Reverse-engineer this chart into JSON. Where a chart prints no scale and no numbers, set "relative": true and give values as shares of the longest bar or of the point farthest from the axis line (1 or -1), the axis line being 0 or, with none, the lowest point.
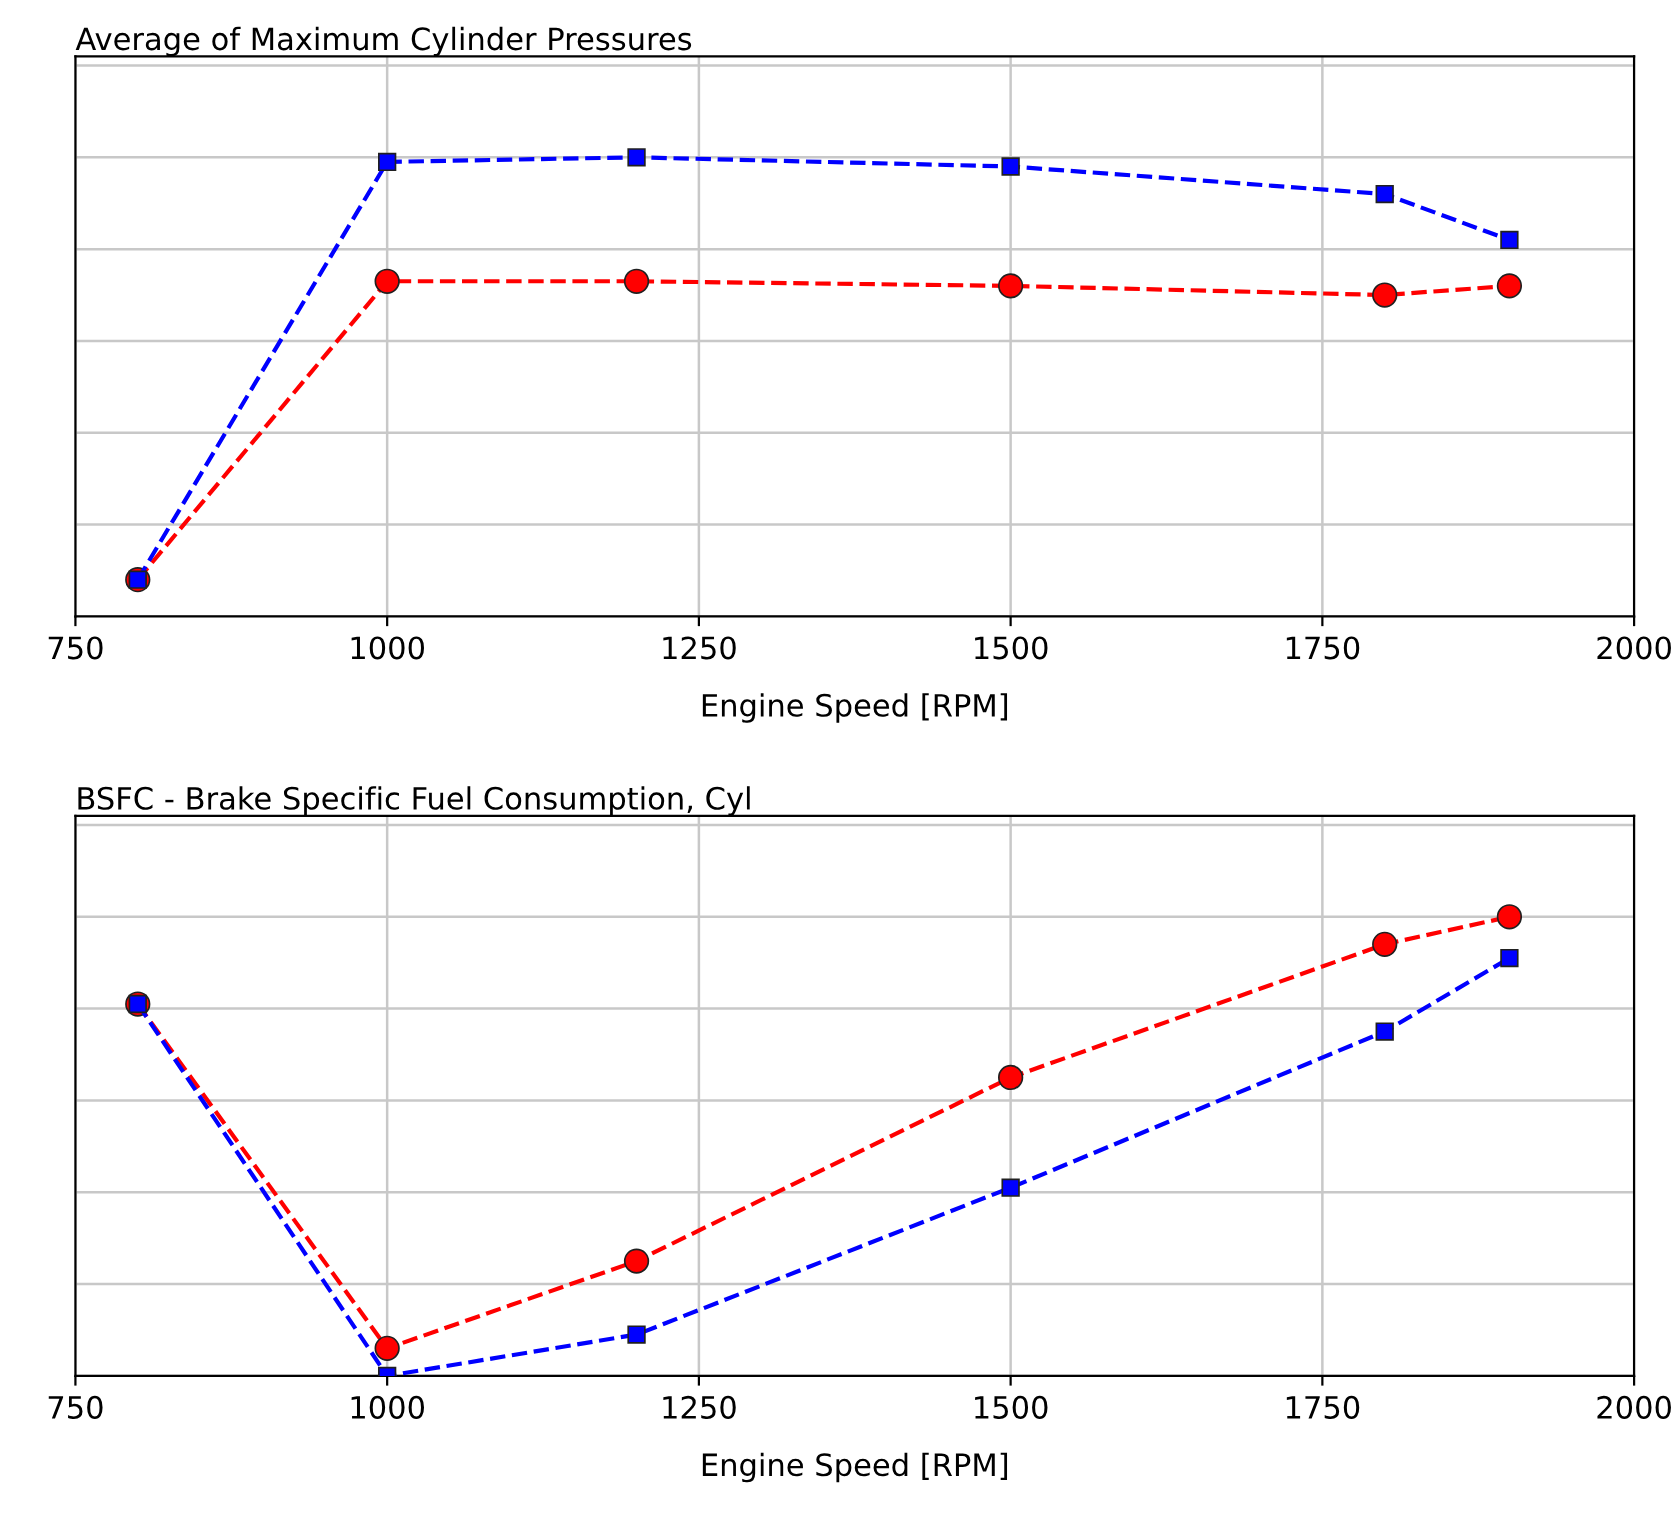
{
  "chart_data": [
    {
      "type": "line",
      "title": "Average of Maximum Cylinder Pressures",
      "xlabel": "Engine Speed [RPM]",
      "relative": true,
      "x": [
        800,
        1000,
        1200,
        1500,
        1800,
        1900
      ],
      "xlim": [
        750,
        2000
      ],
      "xticks": [
        750,
        1000,
        1250,
        1500,
        1750,
        2000
      ],
      "grid": true,
      "line_style": "dashed",
      "tick_labels": "x",
      "series": [
        {
          "color": "#0000ff",
          "marker": "square",
          "values": [
            0.08,
            0.99,
            1,
            0.98,
            0.92,
            0.82
          ]
        },
        {
          "color": "#ff0000",
          "marker": "circle",
          "values": [
            0.08,
            0.73,
            0.73,
            0.72,
            0.7,
            0.72
          ]
        }
      ]
    },
    {
      "type": "line",
      "title": "BSFC - Brake Specific Fuel Consumption, Cyl",
      "xlabel": "Engine Speed [RPM]",
      "relative": true,
      "x": [
        800,
        1000,
        1200,
        1500,
        1800,
        1900
      ],
      "xlim": [
        750,
        2000
      ],
      "xticks": [
        750,
        1000,
        1250,
        1500,
        1750,
        2000
      ],
      "grid": true,
      "line_style": "dashed",
      "tick_labels": "x",
      "series": [
        {
          "color": "#0000ff",
          "marker": "square",
          "values": [
            0.81,
            0,
            0.09,
            0.41,
            0.75,
            0.91
          ]
        },
        {
          "color": "#ff0000",
          "marker": "circle",
          "values": [
            0.81,
            0.06,
            0.25,
            0.65,
            0.94,
            1
          ]
        }
      ]
    }
  ]
}
